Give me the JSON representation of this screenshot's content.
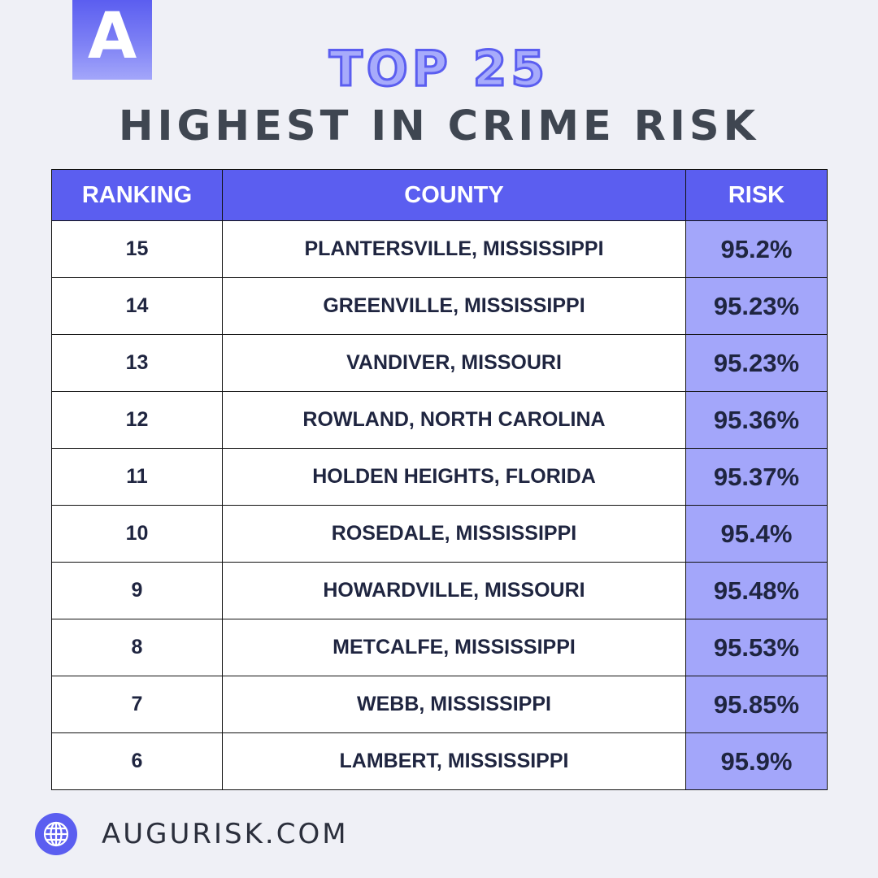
{
  "brand": {
    "logo_letter": "A",
    "website": "AUGURISK.COM"
  },
  "title": {
    "line1": "TOP 25",
    "line2": "HIGHEST IN CRIME RISK"
  },
  "table": {
    "headers": [
      "RANKING",
      "COUNTY",
      "RISK"
    ],
    "rows": [
      {
        "rank": "15",
        "county": "PLANTERSVILLE, MISSISSIPPI",
        "risk": "95.2%"
      },
      {
        "rank": "14",
        "county": "GREENVILLE, MISSISSIPPI",
        "risk": "95.23%"
      },
      {
        "rank": "13",
        "county": "VANDIVER, MISSOURI",
        "risk": "95.23%"
      },
      {
        "rank": "12",
        "county": "ROWLAND, NORTH CAROLINA",
        "risk": "95.36%"
      },
      {
        "rank": "11",
        "county": "HOLDEN HEIGHTS, FLORIDA",
        "risk": "95.37%"
      },
      {
        "rank": "10",
        "county": "ROSEDALE, MISSISSIPPI",
        "risk": "95.4%"
      },
      {
        "rank": "9",
        "county": "HOWARDVILLE, MISSOURI",
        "risk": "95.48%"
      },
      {
        "rank": "8",
        "county": "METCALFE, MISSISSIPPI",
        "risk": "95.53%"
      },
      {
        "rank": "7",
        "county": "WEBB, MISSISSIPPI",
        "risk": "95.85%"
      },
      {
        "rank": "6",
        "county": "LAMBERT, MISSISSIPPI",
        "risk": "95.9%"
      }
    ]
  },
  "colors": {
    "background": "#eff0f6",
    "accent": "#5b5ef0",
    "risk_cell": "#a3a6fa",
    "title_fill": "#a7abfb",
    "subtitle": "#3f4651",
    "cell_text": "#1f2540"
  },
  "icons": {
    "website": "globe-icon"
  }
}
